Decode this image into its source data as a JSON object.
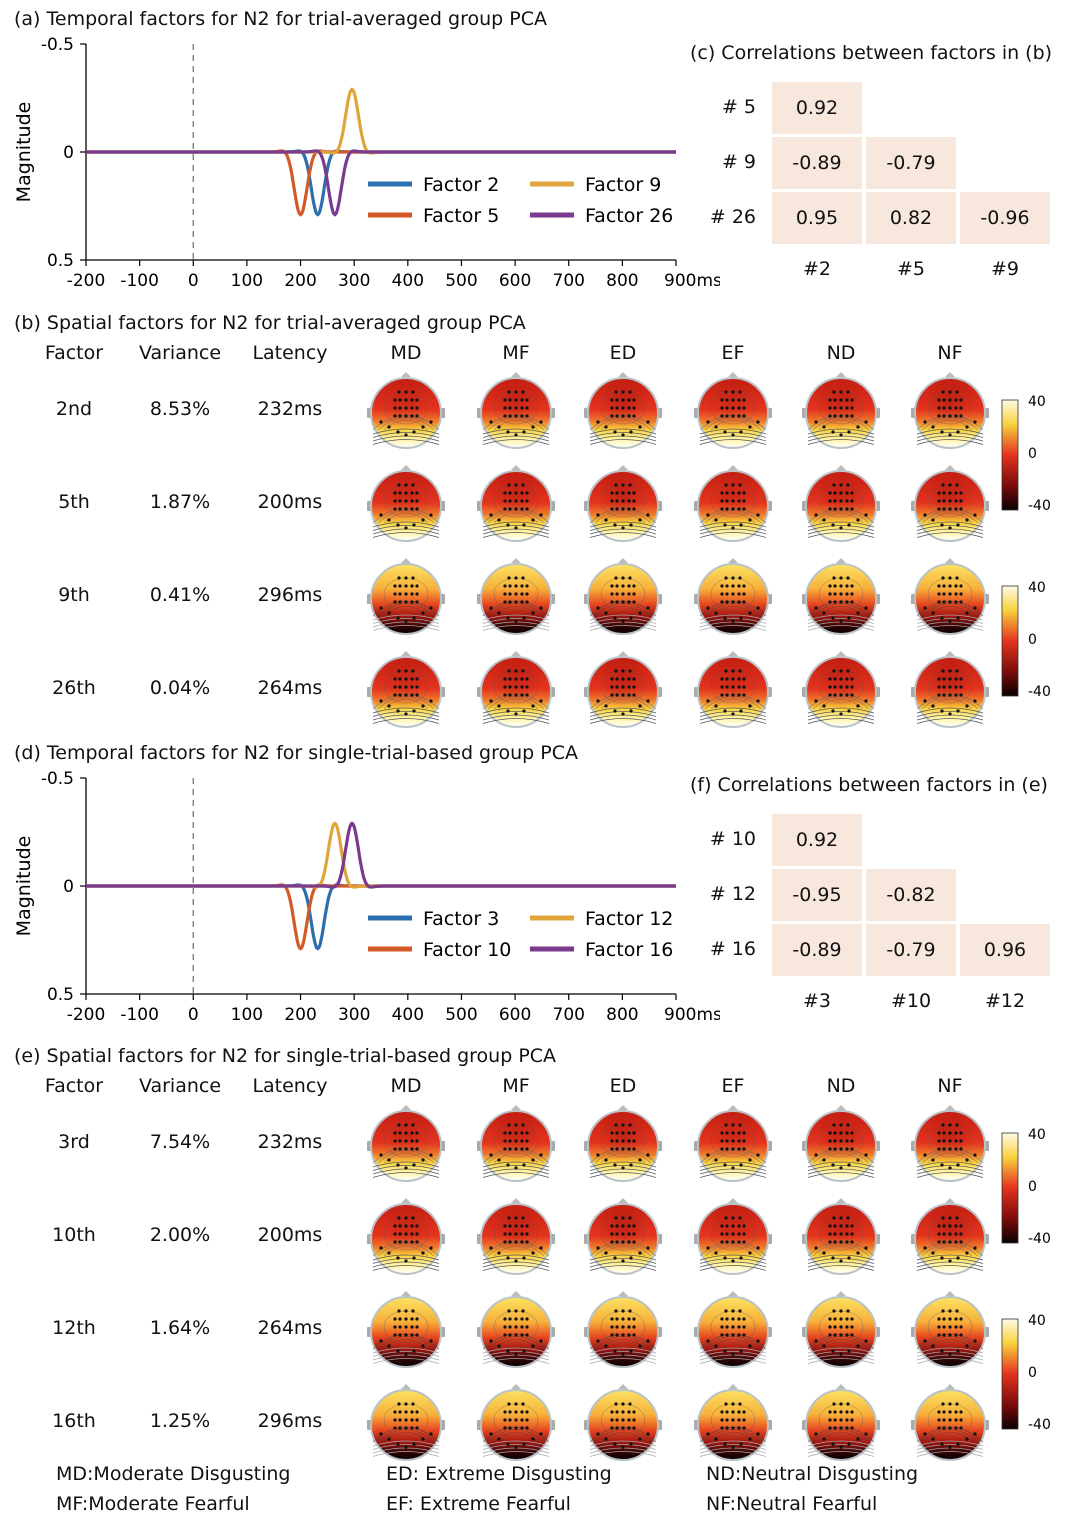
{
  "panels": {
    "a": {
      "title": "(a) Temporal factors for N2 for trial-averaged group PCA",
      "ylabel": "Magnitude",
      "legend": [
        "Factor 2",
        "Factor 5",
        "Factor 9",
        "Factor 26"
      ]
    },
    "b": {
      "title": "(b) Spatial factors for N2 for trial-averaged group PCA"
    },
    "c": {
      "title": "(c) Correlations between factors in (b)"
    },
    "d": {
      "title": "(d) Temporal factors for N2 for single-trial-based group PCA",
      "ylabel": "Magnitude",
      "legend": [
        "Factor 3",
        "Factor 10",
        "Factor 12",
        "Factor 16"
      ]
    },
    "e": {
      "title": "(e) Spatial factors for N2 for single-trial-based group PCA"
    },
    "f": {
      "title": "(f) Correlations between factors in (e)"
    }
  },
  "table_headers": [
    "Factor",
    "Variance",
    "Latency",
    "MD",
    "MF",
    "ED",
    "EF",
    "ND",
    "NF"
  ],
  "spatial_b": [
    {
      "factor": "2nd",
      "variance": "8.53%",
      "latency": "232ms",
      "polarity": "neg"
    },
    {
      "factor": "5th",
      "variance": "1.87%",
      "latency": "200ms",
      "polarity": "neg"
    },
    {
      "factor": "9th",
      "variance": "0.41%",
      "latency": "296ms",
      "polarity": "pos"
    },
    {
      "factor": "26th",
      "variance": "0.04%",
      "latency": "264ms",
      "polarity": "neg"
    }
  ],
  "spatial_e": [
    {
      "factor": "3rd",
      "variance": "7.54%",
      "latency": "232ms",
      "polarity": "neg"
    },
    {
      "factor": "10th",
      "variance": "2.00%",
      "latency": "200ms",
      "polarity": "neg"
    },
    {
      "factor": "12th",
      "variance": "1.64%",
      "latency": "264ms",
      "polarity": "pos"
    },
    {
      "factor": "16th",
      "variance": "1.25%",
      "latency": "296ms",
      "polarity": "pos"
    }
  ],
  "colorbar_ticks": [
    "40",
    "0",
    "-40"
  ],
  "correlations_c": {
    "rows": [
      "# 5",
      "# 9",
      "# 26"
    ],
    "cols": [
      "#2",
      "#5",
      "#9"
    ],
    "values": [
      [
        "0.92"
      ],
      [
        "-0.89",
        "-0.79"
      ],
      [
        "0.95",
        "0.82",
        "-0.96"
      ]
    ]
  },
  "correlations_f": {
    "rows": [
      "# 10",
      "# 12",
      "# 16"
    ],
    "cols": [
      "#3",
      "#10",
      "#12"
    ],
    "values": [
      [
        "0.92"
      ],
      [
        "-0.95",
        "-0.82"
      ],
      [
        "-0.89",
        "-0.79",
        "0.96"
      ]
    ]
  },
  "footnote": {
    "md": "MD:Moderate Disgusting",
    "mf": "MF:Moderate Fearful",
    "ed": "ED: Extreme Disgusting",
    "ef": "EF: Extreme Fearful",
    "nd": "ND:Neutral Disgusting",
    "nf": "NF:Neutral Fearful"
  },
  "colors": {
    "blue": "#2b6fae",
    "orange": "#d35a27",
    "gold": "#e0a53a",
    "purple": "#7a3a8e",
    "corr_bg": "#f8e7dd"
  },
  "chart_data": [
    {
      "type": "line",
      "title": "(a) Temporal factors for N2 for trial-averaged group PCA",
      "xlabel": "ms",
      "ylabel": "Magnitude",
      "xlim": [
        -200,
        900
      ],
      "ylim": [
        0.5,
        -0.5
      ],
      "xticks": [
        "-200",
        "-100",
        "0",
        "100",
        "200",
        "300",
        "400",
        "500",
        "600",
        "700",
        "800",
        "900ms"
      ],
      "yticks": [
        "-0.5",
        "0",
        "0.5"
      ],
      "series": [
        {
          "name": "Factor 2",
          "color": "#2b6fae",
          "peak_ms": 232,
          "amplitude": 0.29,
          "width": 14
        },
        {
          "name": "Factor 5",
          "color": "#d35a27",
          "peak_ms": 200,
          "amplitude": 0.29,
          "width": 14
        },
        {
          "name": "Factor 9",
          "color": "#e0a53a",
          "peak_ms": 296,
          "amplitude": -0.29,
          "width": 14
        },
        {
          "name": "Factor 26",
          "color": "#7a3a8e",
          "peak_ms": 264,
          "amplitude": 0.29,
          "width": 14
        }
      ]
    },
    {
      "type": "line",
      "title": "(d) Temporal factors for N2 for single-trial-based group PCA",
      "xlabel": "ms",
      "ylabel": "Magnitude",
      "xlim": [
        -200,
        900
      ],
      "ylim": [
        0.5,
        -0.5
      ],
      "xticks": [
        "-200",
        "-100",
        "0",
        "100",
        "200",
        "300",
        "400",
        "500",
        "600",
        "700",
        "800",
        "900ms"
      ],
      "yticks": [
        "-0.5",
        "0",
        "0.5"
      ],
      "series": [
        {
          "name": "Factor 3",
          "color": "#2b6fae",
          "peak_ms": 232,
          "amplitude": 0.29,
          "width": 14
        },
        {
          "name": "Factor 10",
          "color": "#d35a27",
          "peak_ms": 200,
          "amplitude": 0.29,
          "width": 14
        },
        {
          "name": "Factor 12",
          "color": "#e0a53a",
          "peak_ms": 264,
          "amplitude": -0.29,
          "width": 14
        },
        {
          "name": "Factor 16",
          "color": "#7a3a8e",
          "peak_ms": 296,
          "amplitude": -0.29,
          "width": 14
        }
      ]
    }
  ]
}
